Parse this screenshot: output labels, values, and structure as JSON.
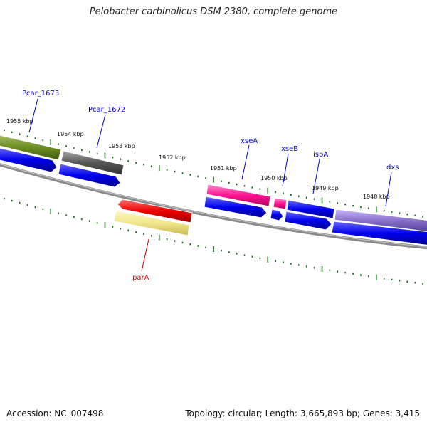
{
  "title": "Pelobacter carbinolicus DSM 2380, complete genome",
  "footer": {
    "accession": "Accession: NC_007498",
    "summary": "Topology: circular; Length: 3,665,893 bp; Genes: 3,415"
  },
  "ruler_labels": [
    "1955 kbp",
    "1954 kbp",
    "1953 kbp",
    "1952 kbp",
    "1951 kbp",
    "1950 kbp",
    "1949 kbp",
    "1948 kbp"
  ],
  "gene_labels": [
    {
      "name": "Pcar_1673",
      "color": "#0000cc"
    },
    {
      "name": "Pcar_1672",
      "color": "#0000cc"
    },
    {
      "name": "xseA",
      "color": "#0000cc"
    },
    {
      "name": "xseB",
      "color": "#0000cc"
    },
    {
      "name": "ispA",
      "color": "#0000cc"
    },
    {
      "name": "dxs",
      "color": "#0000cc"
    },
    {
      "name": "parA",
      "color": "#cc0000"
    }
  ],
  "colors": {
    "cds": "#0000ee",
    "tick": "#116611",
    "backbone": "#808080",
    "olive_gene": "#6b8e23",
    "gray_gene": "#555555",
    "pink_gene": "#ff1493",
    "red_gene": "#ee0000",
    "yellow_gene": "#f0e68c",
    "lavender_gene": "#8870c8"
  }
}
